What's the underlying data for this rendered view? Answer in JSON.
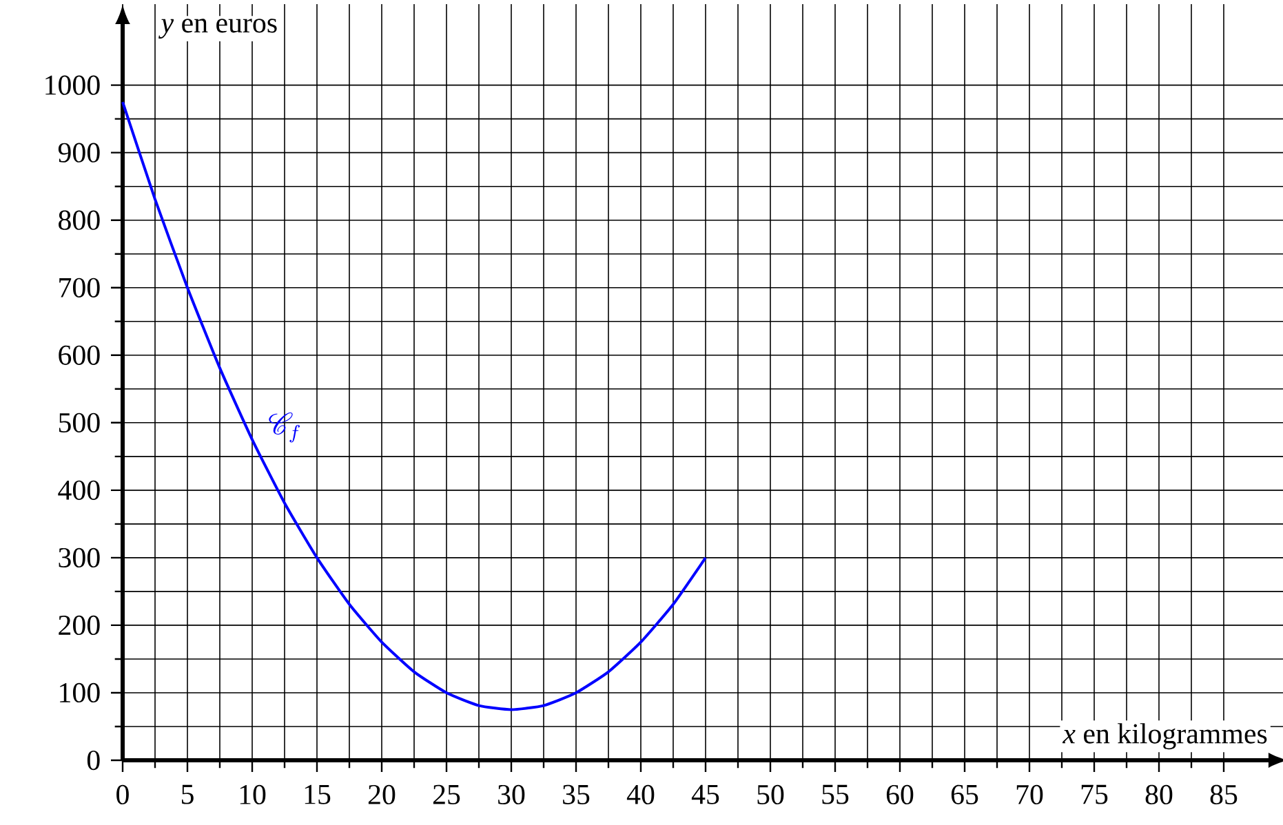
{
  "chart_data": {
    "type": "line",
    "xlabel": "*x* en kilogrammes",
    "ylabel": "*y* en euros",
    "x": [
      0,
      2.5,
      5,
      7.5,
      10,
      12.5,
      15,
      17.5,
      20,
      22.5,
      25,
      27.5,
      30,
      32.5,
      35,
      37.5,
      40,
      42.5,
      45
    ],
    "series": [
      {
        "color": "#0000ff",
        "values": [
          975,
          831,
          700,
          581,
          475,
          381,
          300,
          231,
          175,
          131,
          100,
          81,
          75,
          81,
          100,
          131,
          175,
          231,
          300
        ]
      }
    ],
    "xlim": [
      0,
      90
    ],
    "ylim": [
      0,
      1120
    ],
    "xticks": [
      0,
      5,
      10,
      15,
      20,
      25,
      30,
      35,
      40,
      45,
      50,
      55,
      60,
      65,
      70,
      75,
      80,
      85
    ],
    "yticks": [
      0,
      100,
      200,
      300,
      400,
      500,
      600,
      700,
      800,
      900,
      1000
    ],
    "grid": true,
    "marker": "none",
    "line_style": "solid",
    "annotations": [
      "\\mathscr{C}_f"
    ]
  }
}
